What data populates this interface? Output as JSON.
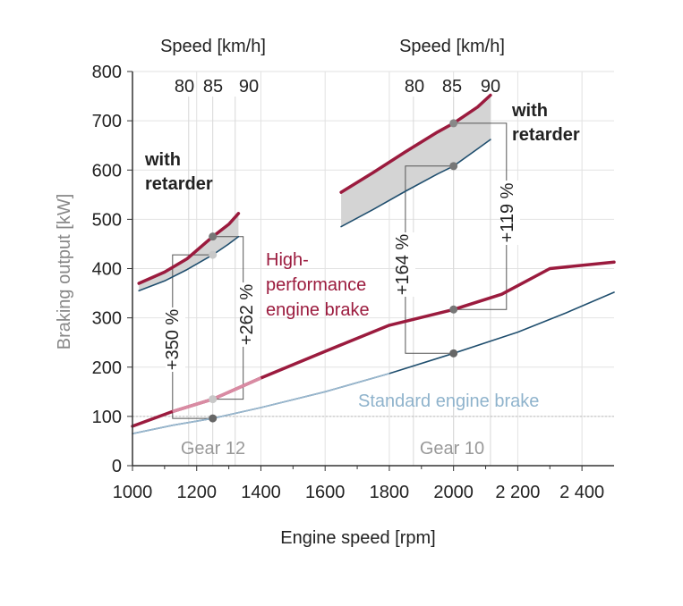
{
  "chart_data": {
    "type": "line",
    "xlabel": "Engine speed [rpm]",
    "ylabel": "Braking output [kW]",
    "xlim": [
      1000,
      2500
    ],
    "ylim": [
      0,
      800
    ],
    "x_ticks": [
      1000,
      1200,
      1400,
      1600,
      1800,
      2000,
      2200,
      2400
    ],
    "x_tick_labels": [
      "1000",
      "1200",
      "1400",
      "1600",
      "1800",
      "2000",
      "2 200",
      "2 400"
    ],
    "y_ticks": [
      0,
      100,
      200,
      300,
      400,
      500,
      600,
      700,
      800
    ],
    "y_tick_labels": [
      "0",
      "100",
      "200",
      "300",
      "400",
      "500",
      "600",
      "700",
      "800"
    ],
    "grid": true,
    "top_axes": [
      {
        "title": "Speed [km/h]",
        "labels": [
          "80",
          "85",
          "90"
        ],
        "rpm": [
          1175,
          1250,
          1320
        ]
      },
      {
        "title": "Speed [km/h]",
        "labels": [
          "80",
          "85",
          "90"
        ],
        "rpm": [
          1875,
          2000,
          2115
        ]
      }
    ],
    "series": [
      {
        "name": "High-performance engine brake",
        "label_lines": [
          "High-",
          "performance",
          "engine brake"
        ],
        "color": "#9b1b3e",
        "x": [
          1000,
          1125,
          1250,
          1400,
          1600,
          1800,
          2000,
          2150,
          2300,
          2500
        ],
        "y": [
          80,
          110,
          135,
          178,
          232,
          285,
          317,
          348,
          400,
          413
        ]
      },
      {
        "name": "Standard engine brake",
        "color": "#1f4e6e",
        "label_color": "#8fb3cc",
        "x": [
          1000,
          1125,
          1250,
          1400,
          1600,
          1800,
          2000,
          2200,
          2350,
          2500
        ],
        "y": [
          65,
          82,
          96,
          118,
          150,
          187,
          228,
          271,
          310,
          352
        ]
      },
      {
        "name": "Gear 12 with retarder (upper)",
        "color": "#9b1b3e",
        "x": [
          1020,
          1100,
          1170,
          1250,
          1300,
          1330
        ],
        "y": [
          370,
          393,
          420,
          465,
          490,
          512
        ]
      },
      {
        "name": "Gear 12 with retarder (lower)",
        "color": "#1f4e6e",
        "x": [
          1020,
          1100,
          1170,
          1250,
          1300,
          1330
        ],
        "y": [
          355,
          375,
          398,
          428,
          450,
          465
        ]
      },
      {
        "name": "Gear 10 with retarder (upper)",
        "color": "#9b1b3e",
        "x": [
          1650,
          1750,
          1850,
          1950,
          2000,
          2075,
          2115
        ],
        "y": [
          555,
          595,
          637,
          677,
          695,
          728,
          752
        ]
      },
      {
        "name": "Gear 10 with retarder (lower)",
        "color": "#1f4e6e",
        "x": [
          1650,
          1750,
          1850,
          1950,
          2000,
          2075,
          2115
        ],
        "y": [
          485,
          520,
          557,
          592,
          608,
          643,
          662
        ]
      }
    ],
    "markers": [
      {
        "x": 1250,
        "y": 465,
        "color": "#777777"
      },
      {
        "x": 1250,
        "y": 428,
        "color": "#c8c8c8"
      },
      {
        "x": 1250,
        "y": 135,
        "color": "#c8c8c8"
      },
      {
        "x": 1250,
        "y": 96,
        "color": "#666666"
      },
      {
        "x": 2000,
        "y": 695,
        "color": "#888888"
      },
      {
        "x": 2000,
        "y": 608,
        "color": "#777777"
      },
      {
        "x": 2000,
        "y": 317,
        "color": "#777777"
      },
      {
        "x": 2000,
        "y": 228,
        "color": "#666666"
      }
    ],
    "annotations": {
      "with_retarder_1": [
        "with",
        "retarder"
      ],
      "with_retarder_2": [
        "with",
        "retarder"
      ],
      "gear_12": "Gear 12",
      "gear_10": "Gear 10",
      "pct_350": "+350 %",
      "pct_262": "+262 %",
      "pct_164": "+164 %",
      "pct_119": "+119 %"
    }
  }
}
